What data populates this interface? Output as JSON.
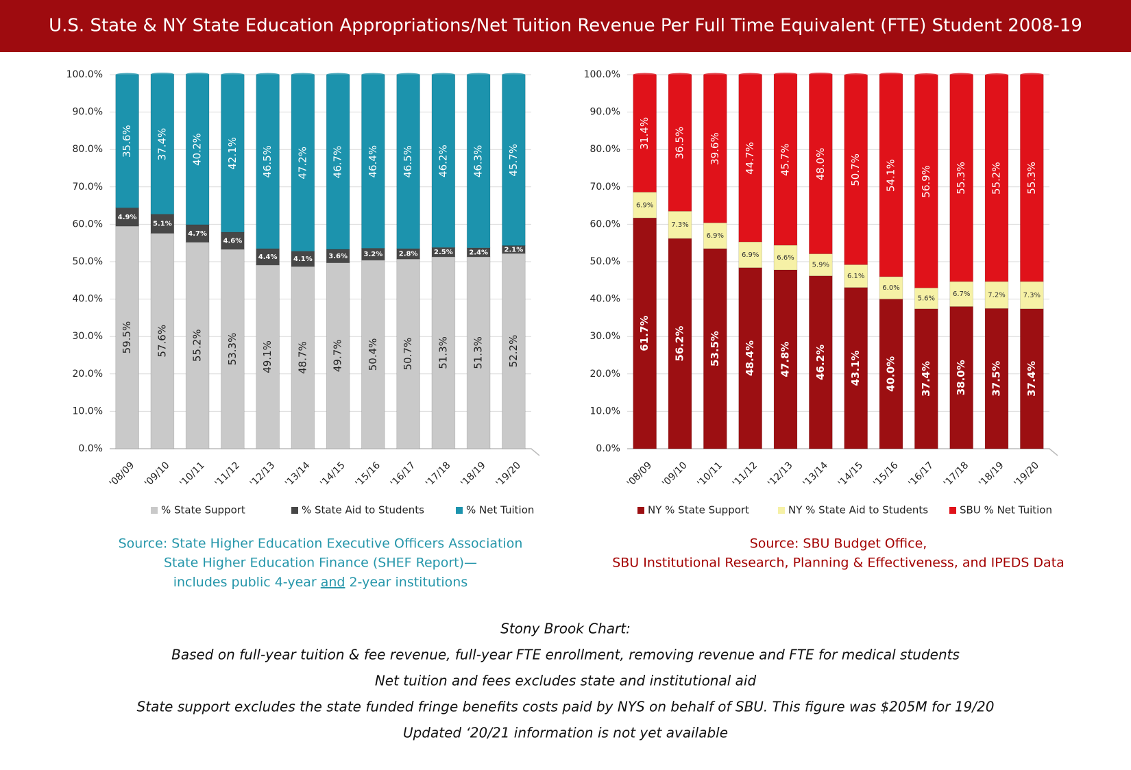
{
  "header": {
    "title": "U.S. State & NY State Education Appropriations/Net Tuition Revenue Per Full Time Equivalent (FTE) Student 2008-19"
  },
  "chart_data": [
    {
      "type": "stacked-bar",
      "categories": [
        "'08/09",
        "'09/10",
        "'10/11",
        "'11/12",
        "'12/13",
        "'13/14",
        "'14/15",
        "'15/16",
        "'16/17",
        "'17/18",
        "'18/19",
        "'19/20"
      ],
      "series": [
        {
          "name": "% State Support",
          "color": "#c9c9c9",
          "label_color": "#222222",
          "values": [
            59.5,
            57.6,
            55.2,
            53.3,
            49.1,
            48.7,
            49.7,
            50.4,
            50.7,
            51.3,
            51.3,
            52.2
          ],
          "value_labels": [
            "59.5%",
            "57.6%",
            "55.2%",
            "53.3%",
            "49.1%",
            "48.7%",
            "49.7%",
            "50.4%",
            "50.7%",
            "51.3%",
            "51.3%",
            "52.2%"
          ]
        },
        {
          "name": "% State Aid to Students",
          "color": "#474747",
          "label_color": "#ffffff",
          "values": [
            4.9,
            5.1,
            4.7,
            4.6,
            4.4,
            4.1,
            3.6,
            3.2,
            2.8,
            2.5,
            2.4,
            2.1
          ],
          "value_labels": [
            "4.9%",
            "5.1%",
            "4.7%",
            "4.6%",
            "4.4%",
            "4.1%",
            "3.6%",
            "3.2%",
            "2.8%",
            "2.5%",
            "2.4%",
            "2.1%"
          ]
        },
        {
          "name": "% Net Tuition",
          "color": "#1c93ad",
          "label_color": "#ffffff",
          "values": [
            35.6,
            37.4,
            40.2,
            42.1,
            46.5,
            47.2,
            46.7,
            46.4,
            46.5,
            46.2,
            46.3,
            45.7
          ],
          "value_labels": [
            "35.6%",
            "37.4%",
            "40.2%",
            "42.1%",
            "46.5%",
            "47.2%",
            "46.7%",
            "46.4%",
            "46.5%",
            "46.2%",
            "46.3%",
            "45.7%"
          ]
        }
      ],
      "ylim": [
        0,
        100
      ],
      "yticks": [
        {
          "value": 0,
          "label": "0.0%"
        },
        {
          "value": 10,
          "label": "10.0%"
        },
        {
          "value": 20,
          "label": "20.0%"
        },
        {
          "value": 30,
          "label": "30.0%"
        },
        {
          "value": 40,
          "label": "40.0%"
        },
        {
          "value": 50,
          "label": "50.0%"
        },
        {
          "value": 60,
          "label": "60.0%"
        },
        {
          "value": 70,
          "label": "70.0%"
        },
        {
          "value": 80,
          "label": "80.0%"
        },
        {
          "value": 90,
          "label": "90.0%"
        },
        {
          "value": 100,
          "label": "100.0%"
        }
      ],
      "grid": true,
      "legend": "bottom",
      "source_color": "#2596aa",
      "source": [
        "Source: State Higher Education Executive Officers Association",
        "State Higher Education Finance (SHEF Report)—",
        [
          "includes public 4-year",
          "and",
          "2-year institutions"
        ]
      ]
    },
    {
      "type": "stacked-bar",
      "categories": [
        "'08/09",
        "'09/10",
        "'10/11",
        "'11/12",
        "'12/13",
        "'13/14",
        "'14/15",
        "'15/16",
        "'16/17",
        "'17/18",
        "'18/19",
        "'19/20"
      ],
      "series": [
        {
          "name": "NY % State Support",
          "color": "#9c0f12",
          "label_color": "#ffffff",
          "values": [
            61.7,
            56.2,
            53.5,
            48.4,
            47.8,
            46.2,
            43.1,
            40.0,
            37.4,
            38.0,
            37.5,
            37.4
          ],
          "value_labels": [
            "61.7%",
            "56.2%",
            "53.5%",
            "48.4%",
            "47.8%",
            "46.2%",
            "43.1%",
            "40.0%",
            "37.4%",
            "38.0%",
            "37.5%",
            "37.4%"
          ]
        },
        {
          "name": "NY % State Aid to Students",
          "color": "#f6f1a6",
          "label_color": "#333333",
          "values": [
            6.9,
            7.3,
            6.9,
            6.9,
            6.6,
            5.9,
            6.1,
            6.0,
            5.6,
            6.7,
            7.2,
            7.3
          ],
          "value_labels": [
            "6.9%",
            "7.3%",
            "6.9%",
            "6.9%",
            "6.6%",
            "5.9%",
            "6.1%",
            "6.0%",
            "5.6%",
            "6.7%",
            "7.2%",
            "7.3%"
          ]
        },
        {
          "name": "SBU % Net Tuition",
          "color": "#e0121a",
          "label_color": "#ffffff",
          "values": [
            31.4,
            36.5,
            39.6,
            44.7,
            45.7,
            48.0,
            50.7,
            54.1,
            56.9,
            55.3,
            55.2,
            55.3
          ],
          "value_labels": [
            "31.4%",
            "36.5%",
            "39.6%",
            "44.7%",
            "45.7%",
            "48.0%",
            "50.7%",
            "54.1%",
            "56.9%",
            "55.3%",
            "55.2%",
            "55.3%"
          ]
        }
      ],
      "ylim": [
        0,
        100
      ],
      "yticks": [
        {
          "value": 0,
          "label": "0.0%"
        },
        {
          "value": 10,
          "label": "10.0%"
        },
        {
          "value": 20,
          "label": "20.0%"
        },
        {
          "value": 30,
          "label": "30.0%"
        },
        {
          "value": 40,
          "label": "40.0%"
        },
        {
          "value": 50,
          "label": "50.0%"
        },
        {
          "value": 60,
          "label": "60.0%"
        },
        {
          "value": 70,
          "label": "70.0%"
        },
        {
          "value": 80,
          "label": "80.0%"
        },
        {
          "value": 90,
          "label": "90.0%"
        },
        {
          "value": 100,
          "label": "100.0%"
        }
      ],
      "grid": true,
      "legend": "bottom",
      "source_color": "#a30000",
      "source": [
        "Source: SBU Budget Office,",
        "SBU Institutional Research, Planning & Effectiveness, and IPEDS Data"
      ]
    }
  ],
  "notes": [
    "Stony Brook Chart:",
    "Based on full-year tuition & fee revenue, full-year FTE enrollment, removing revenue and FTE for medical students",
    "Net tuition and fees excludes state and institutional aid",
    "State support excludes the state funded fringe benefits costs paid by NYS on behalf of SBU. This figure was $205M for 19/20",
    "Updated ‘20/21 information is not yet available"
  ]
}
